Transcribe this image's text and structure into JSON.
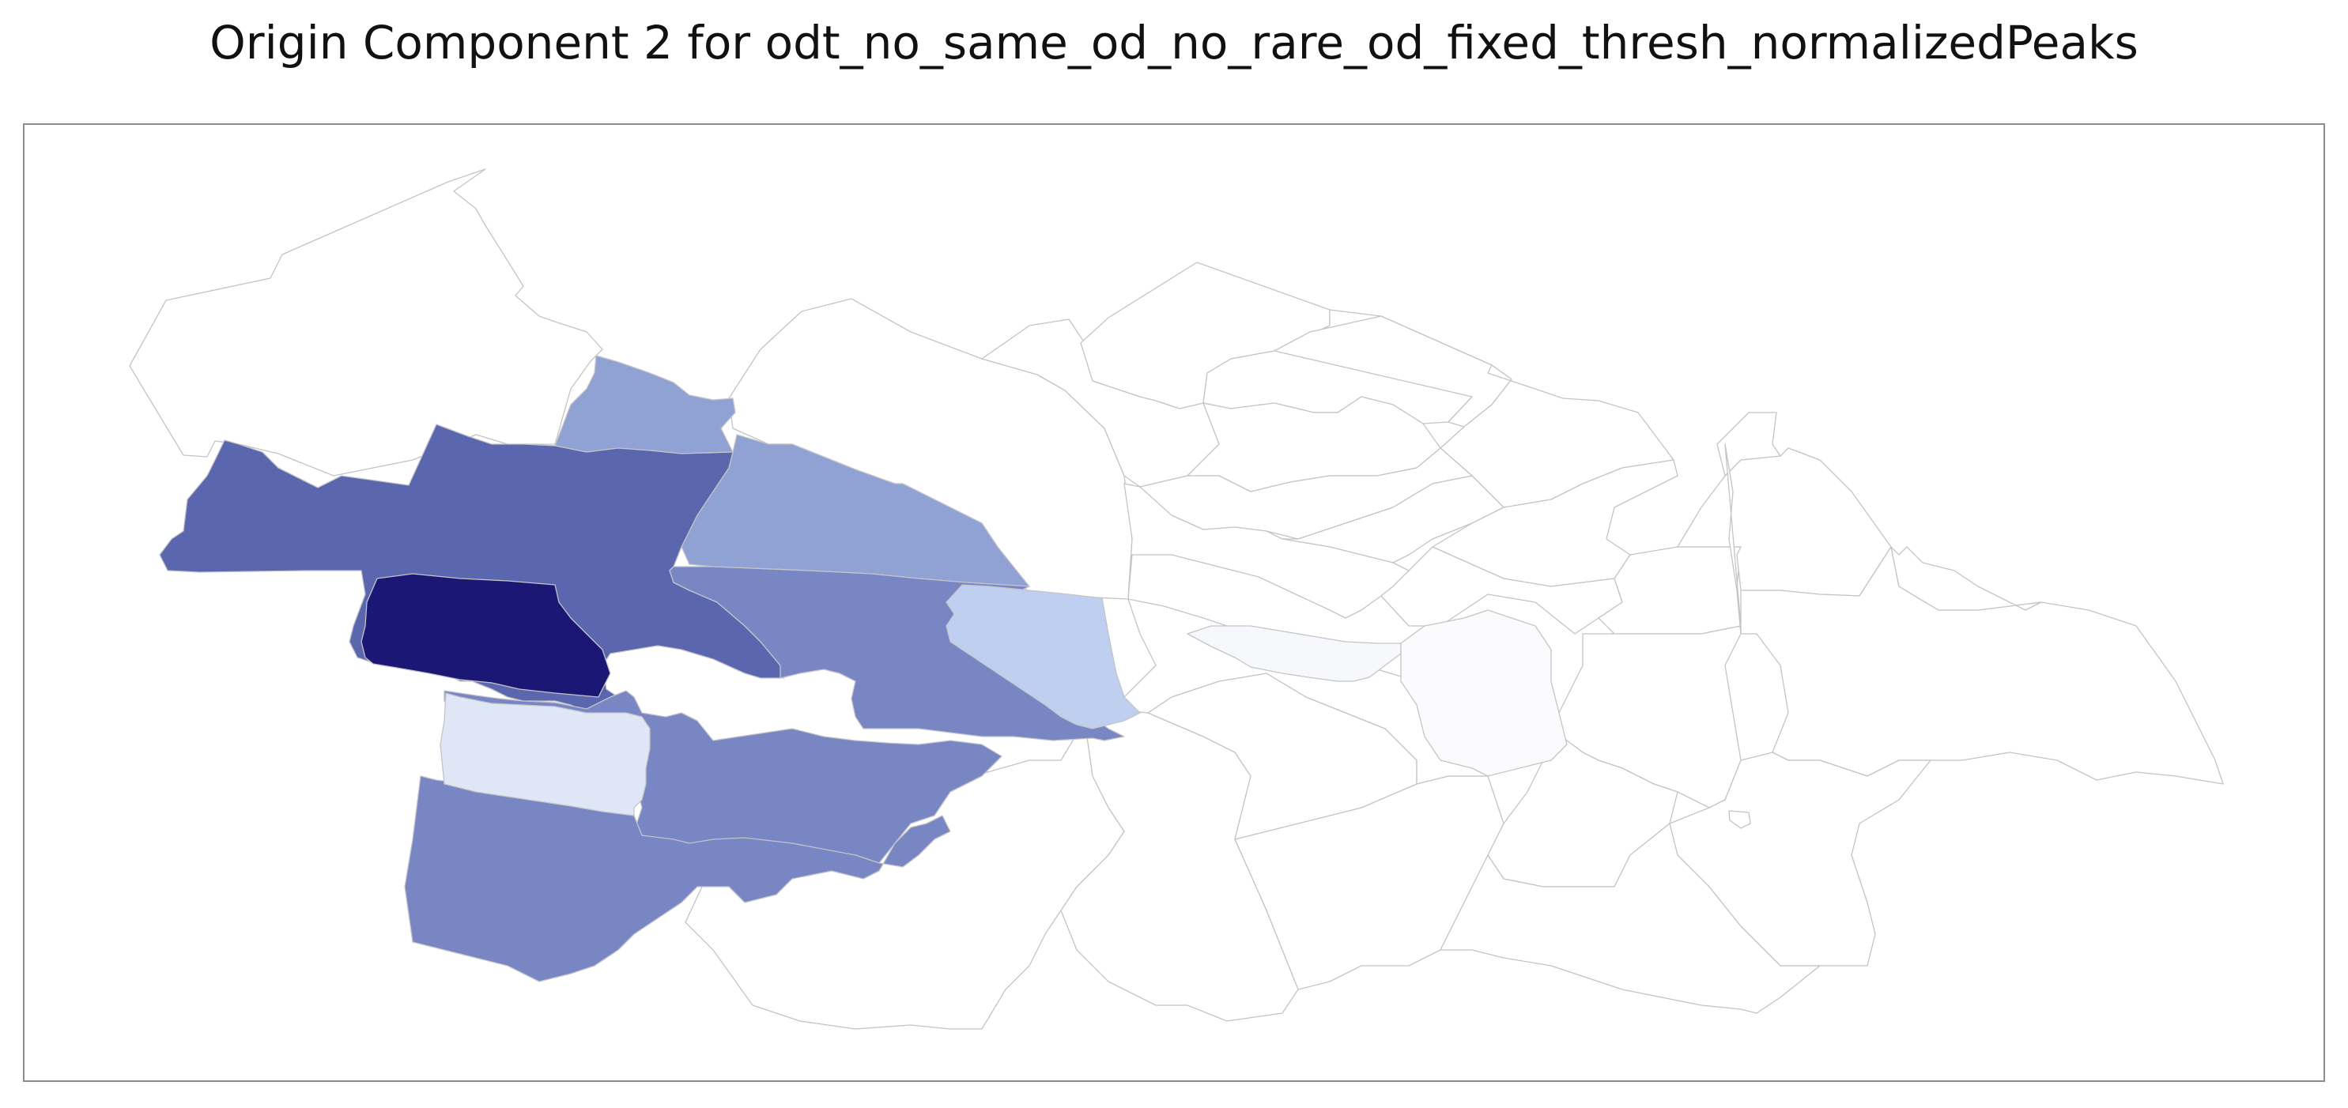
{
  "title": "Origin Component 2 for odt_no_same_od_no_rare_od_fixed_thresh_normalizedPeaks",
  "colors": {
    "background": "#ffffff",
    "frame": "#8c8c8c",
    "boundary": "#c4c4c8",
    "darkest": "#1b1775",
    "dark": "#5a66ad",
    "medium": "#7886c3",
    "light": "#8fa2d3",
    "pale": "#bfcff0",
    "palest": "#dfe7f6",
    "faint": "#f6f8fc",
    "empty": "#ffffff"
  },
  "regions": [
    {
      "name": "region-northwest-outer",
      "shade": "empty"
    },
    {
      "name": "region-northwest-upper",
      "shade": "light"
    },
    {
      "name": "region-west-large",
      "shade": "dark"
    },
    {
      "name": "region-west-core",
      "shade": "darkest"
    },
    {
      "name": "region-central-west",
      "shade": "light"
    },
    {
      "name": "region-central-south",
      "shade": "medium"
    },
    {
      "name": "region-south-west",
      "shade": "medium"
    },
    {
      "name": "region-south-west-light",
      "shade": "palest"
    },
    {
      "name": "region-central-east-edge",
      "shade": "pale"
    },
    {
      "name": "region-east-strip",
      "shade": "faint"
    }
  ]
}
